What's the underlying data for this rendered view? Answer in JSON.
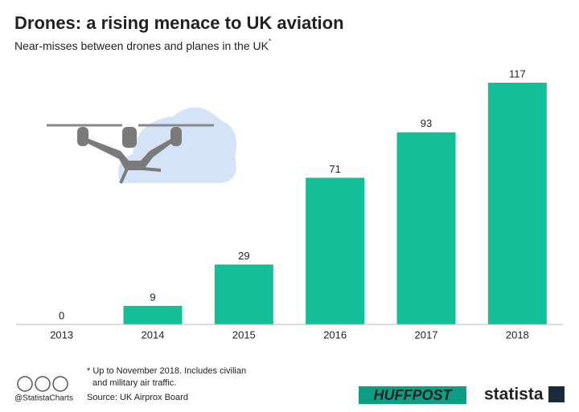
{
  "chart_data": {
    "type": "bar",
    "title": "Drones: a rising menace to UK aviation",
    "subtitle": "Near-misses between drones and planes in the UK",
    "subtitle_marker": "*",
    "categories": [
      "2013",
      "2014",
      "2015",
      "2016",
      "2017",
      "2018"
    ],
    "values": [
      0,
      9,
      29,
      71,
      93,
      117
    ],
    "color": "#13bf97",
    "footnote": [
      "* Up to November 2018. Includes civilian",
      "and military air traffic."
    ],
    "source": "Source: UK Airprox Board",
    "handle": "@StatistaCharts",
    "brands": [
      "HUFFPOST",
      "statista"
    ]
  }
}
